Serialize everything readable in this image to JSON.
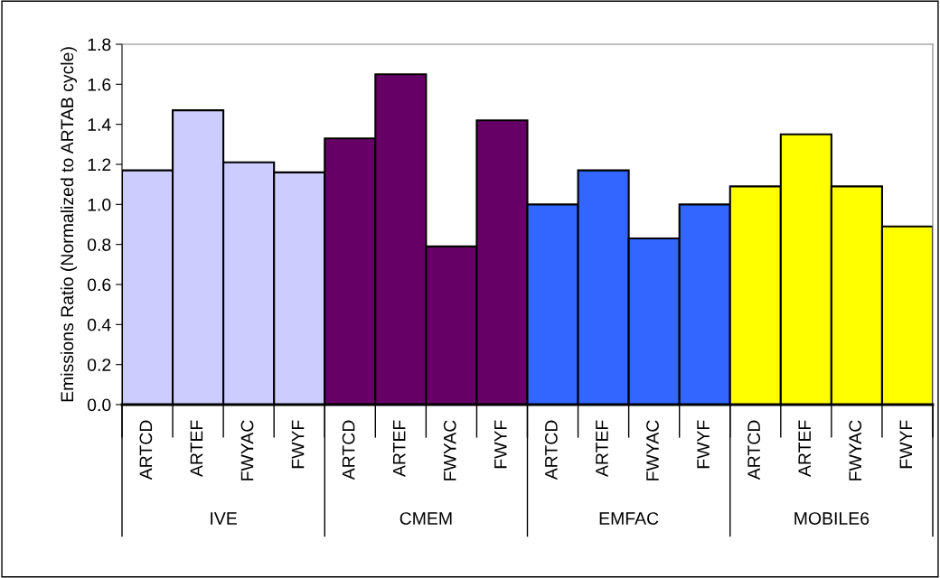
{
  "chart_data": {
    "type": "bar",
    "ylabel": "Emissions Ratio (Normalized to ARTAB cycle)",
    "categories": [
      "ARTCD",
      "ARTEF",
      "FWYAC",
      "FWYF",
      "ARTCD",
      "ARTEF",
      "FWYAC",
      "FWYF",
      "ARTCD",
      "ARTEF",
      "FWYAC",
      "FWYF",
      "ARTCD",
      "ARTEF",
      "FWYAC",
      "FWYF"
    ],
    "values": [
      1.17,
      1.47,
      1.21,
      1.16,
      1.33,
      1.65,
      0.79,
      1.42,
      1.0,
      1.17,
      0.83,
      1.0,
      1.09,
      1.35,
      1.09,
      0.89
    ],
    "colors": [
      "#ccccff",
      "#ccccff",
      "#ccccff",
      "#ccccff",
      "#660066",
      "#660066",
      "#660066",
      "#660066",
      "#3366ff",
      "#3366ff",
      "#3366ff",
      "#3366ff",
      "#ffff00",
      "#ffff00",
      "#ffff00",
      "#ffff00"
    ],
    "annotations": [
      "IVE",
      "CMEM",
      "EMFAC",
      "MOBILE6"
    ],
    "ylim": [
      0,
      1.8
    ],
    "yticks": [
      {
        "value": 0,
        "label": "0.0"
      },
      {
        "value": 0.2,
        "label": "0.2"
      },
      {
        "value": 0.4,
        "label": "0.4"
      },
      {
        "value": 0.6,
        "label": "0.6"
      },
      {
        "value": 0.8,
        "label": "0.8"
      },
      {
        "value": 1.0,
        "label": "1.0"
      },
      {
        "value": 1.2,
        "label": "1.2"
      },
      {
        "value": 1.4,
        "label": "1.4"
      },
      {
        "value": 1.6,
        "label": "1.6"
      },
      {
        "value": 1.8,
        "label": "1.8"
      }
    ],
    "grid": false,
    "legend": false
  }
}
